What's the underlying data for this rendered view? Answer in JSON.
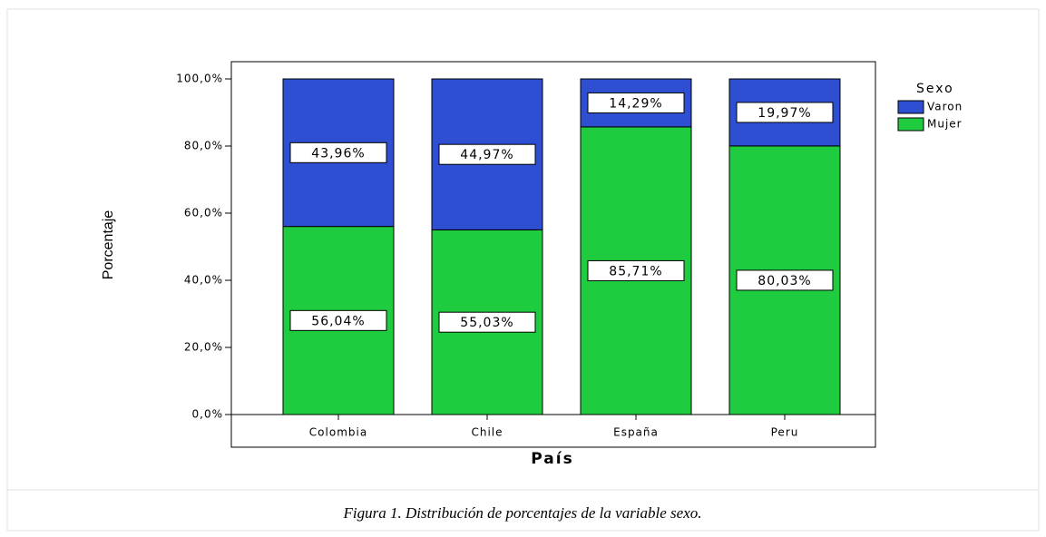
{
  "chart_data": {
    "type": "stacked_bar",
    "caption": "Figura 1. Distribución de porcentajes de la variable sexo.",
    "xlabel": "País",
    "ylabel": "Porcentaje",
    "legend_title": "Sexo",
    "categories": [
      "Colombia",
      "Chile",
      "España",
      "Peru"
    ],
    "series": [
      {
        "name": "Varon",
        "color": "#2e4fd1",
        "values": [
          43.96,
          44.97,
          14.29,
          19.97
        ],
        "value_labels": [
          "43,96%",
          "44,97%",
          "14,29%",
          "19,97%"
        ]
      },
      {
        "name": "Mujer",
        "color": "#1fcc3f",
        "values": [
          56.04,
          55.03,
          85.71,
          80.03
        ],
        "value_labels": [
          "56,04%",
          "55,03%",
          "85,71%",
          "80,03%"
        ]
      }
    ],
    "ylim": [
      0,
      100
    ],
    "yticks": [
      {
        "value": 0,
        "label": "0,0%"
      },
      {
        "value": 20,
        "label": "20,0%"
      },
      {
        "value": 40,
        "label": "40,0%"
      },
      {
        "value": 60,
        "label": "60,0%"
      },
      {
        "value": 80,
        "label": "80,0%"
      },
      {
        "value": 100,
        "label": "100,0%"
      }
    ]
  }
}
